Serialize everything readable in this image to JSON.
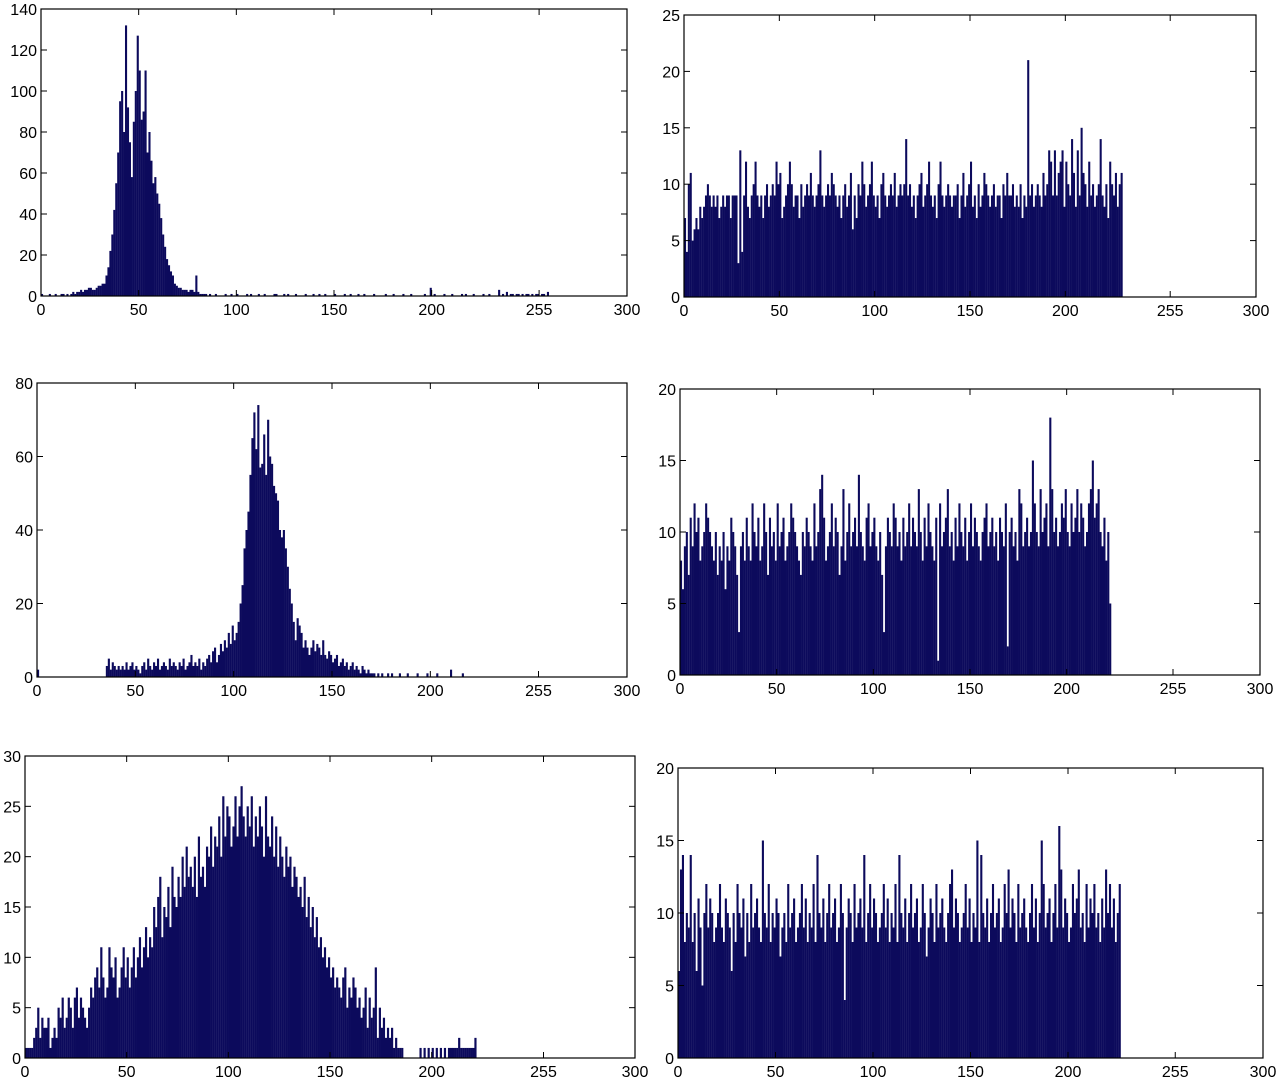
{
  "style": {
    "bar_color": "#0c0a5c",
    "axis_color": "#000000",
    "background": "#ffffff"
  },
  "chart_data": [
    {
      "type": "bar",
      "xlim": [
        0,
        300
      ],
      "ylim": [
        0,
        140
      ],
      "xticks": [
        0,
        50,
        100,
        150,
        200,
        255,
        300
      ],
      "yticks": [
        0,
        20,
        40,
        60,
        80,
        100,
        120,
        140
      ],
      "x_start": 0,
      "values": [
        1,
        0,
        0,
        0,
        1,
        0,
        0,
        1,
        0,
        0,
        1,
        1,
        0,
        1,
        0,
        1,
        2,
        1,
        2,
        2,
        3,
        2,
        3,
        3,
        4,
        4,
        3,
        3,
        4,
        5,
        5,
        6,
        6,
        10,
        14,
        22,
        30,
        42,
        55,
        70,
        95,
        100,
        80,
        132,
        92,
        75,
        58,
        85,
        100,
        127,
        110,
        86,
        90,
        110,
        70,
        80,
        66,
        55,
        58,
        50,
        45,
        38,
        30,
        24,
        18,
        15,
        12,
        10,
        6,
        5,
        4,
        4,
        3,
        3,
        3,
        2,
        3,
        3,
        2,
        10,
        2,
        1,
        1,
        1,
        1,
        0,
        1,
        0,
        0,
        1,
        0,
        0,
        0,
        0,
        1,
        0,
        0,
        1,
        0,
        0,
        1,
        0,
        0,
        0,
        0,
        1,
        0,
        1,
        0,
        0,
        0,
        1,
        0,
        0,
        1,
        0,
        0,
        0,
        0,
        1,
        1,
        0,
        0,
        0,
        1,
        0,
        1,
        0,
        0,
        0,
        1,
        0,
        0,
        0,
        0,
        1,
        0,
        0,
        0,
        1,
        0,
        0,
        1,
        0,
        0,
        1,
        0,
        0,
        0,
        0,
        1,
        0,
        0,
        0,
        0,
        1,
        0,
        0,
        1,
        0,
        0,
        0,
        1,
        0,
        0,
        1,
        0,
        0,
        0,
        0,
        1,
        0,
        0,
        0,
        0,
        0,
        1,
        0,
        0,
        0,
        1,
        0,
        0,
        0,
        0,
        1,
        0,
        0,
        0,
        1,
        0,
        0,
        0,
        0,
        0,
        0,
        1,
        0,
        0,
        4,
        0,
        1,
        0,
        0,
        0,
        0,
        1,
        0,
        0,
        0,
        1,
        0,
        0,
        0,
        0,
        1,
        0,
        1,
        0,
        0,
        0,
        1,
        0,
        0,
        0,
        0,
        1,
        0,
        0,
        1,
        0,
        0,
        0,
        0,
        3,
        0,
        1,
        0,
        2,
        0,
        1,
        1,
        0,
        1,
        1,
        0,
        1,
        0,
        1,
        1,
        0,
        1,
        0,
        1,
        1,
        0,
        1,
        1,
        0,
        2
      ]
    },
    {
      "type": "bar",
      "xlim": [
        0,
        300
      ],
      "ylim": [
        0,
        25
      ],
      "xticks": [
        0,
        50,
        100,
        150,
        200,
        255,
        300
      ],
      "yticks": [
        0,
        5,
        10,
        15,
        20,
        25
      ],
      "x_start": 0,
      "values": [
        7,
        4,
        10,
        11,
        5,
        6,
        7,
        6,
        8,
        7,
        8,
        9,
        10,
        9,
        8,
        9,
        8,
        9,
        7,
        8,
        9,
        8,
        9,
        9,
        7,
        9,
        9,
        9,
        3,
        13,
        4,
        9,
        12,
        8,
        7,
        9,
        10,
        12,
        9,
        8,
        9,
        7,
        9,
        10,
        8,
        9,
        10,
        9,
        12,
        10,
        11,
        7,
        8,
        9,
        10,
        12,
        10,
        8,
        9,
        9,
        7,
        10,
        8,
        9,
        10,
        9,
        11,
        9,
        8,
        9,
        10,
        13,
        9,
        8,
        9,
        10,
        9,
        11,
        10,
        9,
        8,
        9,
        7,
        9,
        10,
        8,
        9,
        11,
        6,
        9,
        7,
        10,
        9,
        12,
        10,
        8,
        9,
        10,
        12,
        9,
        8,
        9,
        7,
        10,
        11,
        9,
        8,
        9,
        10,
        9,
        11,
        8,
        9,
        10,
        9,
        10,
        14,
        9,
        10,
        8,
        9,
        7,
        9,
        10,
        11,
        8,
        9,
        10,
        12,
        9,
        8,
        9,
        7,
        10,
        12,
        9,
        8,
        9,
        10,
        9,
        8,
        9,
        9,
        10,
        7,
        9,
        11,
        8,
        9,
        10,
        12,
        8,
        9,
        7,
        10,
        8,
        9,
        11,
        10,
        9,
        8,
        9,
        10,
        8,
        9,
        9,
        7,
        10,
        9,
        11,
        9,
        9,
        10,
        8,
        9,
        8,
        10,
        7,
        9,
        8,
        21,
        9,
        10,
        8,
        9,
        10,
        9,
        8,
        11,
        9,
        10,
        13,
        12,
        9,
        13,
        9,
        11,
        12,
        13,
        8,
        12,
        10,
        9,
        14,
        11,
        8,
        13,
        9,
        15,
        11,
        10,
        8,
        12,
        9,
        10,
        8,
        9,
        10,
        14,
        9,
        8,
        10,
        7,
        12,
        10,
        9,
        11,
        8,
        10,
        11
      ]
    },
    {
      "type": "bar",
      "xlim": [
        0,
        300
      ],
      "ylim": [
        0,
        80
      ],
      "xticks": [
        0,
        50,
        100,
        150,
        200,
        255,
        300
      ],
      "yticks": [
        0,
        20,
        40,
        60,
        80
      ],
      "x_start": 0,
      "values": [
        2,
        0,
        0,
        0,
        0,
        0,
        0,
        0,
        0,
        0,
        0,
        0,
        0,
        0,
        0,
        0,
        0,
        0,
        0,
        0,
        0,
        0,
        0,
        0,
        0,
        0,
        0,
        0,
        0,
        0,
        0,
        0,
        0,
        0,
        0,
        3,
        5,
        2,
        4,
        3,
        2,
        3,
        2,
        3,
        2,
        4,
        2,
        3,
        4,
        2,
        3,
        2,
        1,
        3,
        4,
        2,
        5,
        3,
        2,
        4,
        3,
        5,
        2,
        3,
        4,
        3,
        2,
        5,
        3,
        4,
        3,
        2,
        4,
        3,
        5,
        2,
        3,
        4,
        6,
        3,
        4,
        3,
        5,
        2,
        4,
        3,
        5,
        6,
        4,
        7,
        8,
        4,
        6,
        9,
        7,
        10,
        8,
        12,
        9,
        14,
        10,
        12,
        15,
        20,
        25,
        35,
        40,
        45,
        55,
        65,
        72,
        62,
        74,
        57,
        58,
        66,
        55,
        70,
        60,
        58,
        52,
        50,
        48,
        40,
        38,
        40,
        35,
        30,
        24,
        20,
        15,
        10,
        16,
        14,
        12,
        8,
        10,
        8,
        6,
        8,
        10,
        7,
        9,
        8,
        6,
        10,
        6,
        5,
        7,
        6,
        4,
        5,
        6,
        3,
        4,
        5,
        3,
        4,
        2,
        3,
        4,
        2,
        3,
        2,
        1,
        3,
        2,
        1,
        2,
        1,
        1,
        1,
        0,
        1,
        0,
        1,
        0,
        0,
        1,
        0,
        1,
        0,
        0,
        0,
        1,
        0,
        0,
        0,
        1,
        0,
        0,
        0,
        0,
        1,
        0,
        0,
        0,
        0,
        1,
        0,
        0,
        0,
        0,
        1,
        0,
        0,
        0,
        0,
        0,
        0,
        2,
        0,
        0,
        0,
        0,
        0,
        1,
        0
      ]
    },
    {
      "type": "bar",
      "xlim": [
        0,
        300
      ],
      "ylim": [
        0,
        20
      ],
      "xticks": [
        0,
        50,
        100,
        150,
        200,
        255,
        300
      ],
      "yticks": [
        0,
        5,
        10,
        15,
        20
      ],
      "x_start": 0,
      "values": [
        8,
        6,
        9,
        10,
        7,
        11,
        9,
        12,
        10,
        11,
        8,
        9,
        10,
        12,
        11,
        10,
        9,
        8,
        10,
        7,
        9,
        8,
        10,
        6,
        9,
        8,
        11,
        10,
        9,
        7,
        3,
        9,
        10,
        8,
        11,
        9,
        8,
        12,
        10,
        9,
        11,
        8,
        9,
        12,
        10,
        7,
        11,
        9,
        10,
        8,
        12,
        9,
        10,
        11,
        8,
        9,
        10,
        12,
        11,
        10,
        9,
        8,
        7,
        10,
        9,
        11,
        10,
        9,
        8,
        12,
        9,
        10,
        13,
        14,
        11,
        8,
        9,
        10,
        12,
        9,
        11,
        10,
        7,
        9,
        13,
        8,
        10,
        12,
        9,
        10,
        11,
        9,
        14,
        10,
        9,
        8,
        11,
        12,
        9,
        10,
        11,
        9,
        8,
        10,
        7,
        3,
        9,
        11,
        10,
        9,
        12,
        11,
        9,
        10,
        8,
        11,
        9,
        10,
        12,
        9,
        11,
        10,
        9,
        13,
        10,
        8,
        11,
        9,
        12,
        10,
        9,
        8,
        11,
        1,
        12,
        9,
        10,
        11,
        13,
        9,
        10,
        8,
        11,
        9,
        12,
        10,
        9,
        11,
        8,
        10,
        12,
        9,
        11,
        10,
        9,
        8,
        10,
        11,
        12,
        9,
        10,
        11,
        9,
        10,
        8,
        11,
        10,
        9,
        12,
        2,
        10,
        11,
        9,
        10,
        8,
        13,
        12,
        9,
        10,
        11,
        9,
        10,
        15,
        12,
        10,
        9,
        13,
        10,
        11,
        12,
        9,
        18,
        13,
        10,
        11,
        9,
        10,
        12,
        11,
        13,
        10,
        9,
        12,
        10,
        11,
        13,
        10,
        12,
        11,
        9,
        10,
        12,
        13,
        15,
        11,
        12,
        13,
        10,
        9,
        11,
        8,
        10,
        5
      ]
    },
    {
      "type": "bar",
      "xlim": [
        0,
        300
      ],
      "ylim": [
        0,
        30
      ],
      "xticks": [
        0,
        50,
        100,
        150,
        200,
        255,
        300
      ],
      "yticks": [
        0,
        5,
        10,
        15,
        20,
        25,
        30
      ],
      "x_start": 0,
      "values": [
        1,
        1,
        1,
        1,
        2,
        3,
        5,
        2,
        4,
        3,
        3,
        4,
        1,
        2,
        3,
        2,
        5,
        4,
        6,
        3,
        4,
        6,
        5,
        3,
        6,
        7,
        4,
        6,
        5,
        4,
        3,
        5,
        7,
        6,
        8,
        9,
        7,
        11,
        8,
        6,
        7,
        11,
        9,
        8,
        10,
        6,
        7,
        9,
        11,
        8,
        10,
        7,
        9,
        11,
        8,
        10,
        12,
        9,
        11,
        13,
        10,
        12,
        11,
        15,
        13,
        16,
        18,
        12,
        15,
        14,
        17,
        13,
        19,
        16,
        15,
        18,
        16,
        20,
        17,
        21,
        18,
        19,
        17,
        20,
        16,
        22,
        18,
        19,
        17,
        21,
        20,
        23,
        19,
        22,
        21,
        24,
        20,
        26,
        22,
        25,
        24,
        21,
        23,
        26,
        22,
        25,
        27,
        24,
        22,
        25,
        23,
        26,
        21,
        24,
        22,
        25,
        23,
        20,
        26,
        22,
        21,
        24,
        20,
        23,
        19,
        22,
        20,
        18,
        21,
        19,
        20,
        17,
        19,
        18,
        16,
        17,
        15,
        18,
        14,
        16,
        13,
        15,
        12,
        14,
        11,
        12,
        10,
        11,
        9,
        10,
        8,
        9,
        7,
        8,
        7,
        6,
        8,
        9,
        5,
        7,
        6,
        8,
        7,
        5,
        6,
        4,
        5,
        7,
        3,
        6,
        4,
        5,
        9,
        2,
        5,
        3,
        4,
        2,
        3,
        2,
        3,
        1,
        2,
        1,
        1,
        1,
        0,
        0,
        0,
        0,
        0,
        0,
        0,
        0,
        1,
        0,
        1,
        0,
        1,
        0,
        1,
        0,
        1,
        0,
        1,
        0,
        1,
        0,
        1,
        1,
        1,
        1,
        1,
        2,
        1,
        1,
        1,
        1,
        1,
        1,
        1,
        2
      ]
    },
    {
      "type": "bar",
      "xlim": [
        0,
        300
      ],
      "ylim": [
        0,
        20
      ],
      "xticks": [
        0,
        50,
        100,
        150,
        200,
        255,
        300
      ],
      "yticks": [
        0,
        5,
        10,
        15,
        20
      ],
      "x_start": 0,
      "values": [
        6,
        13,
        14,
        8,
        10,
        9,
        14,
        8,
        10,
        6,
        11,
        9,
        5,
        10,
        12,
        9,
        11,
        10,
        8,
        9,
        10,
        12,
        9,
        8,
        11,
        10,
        9,
        6,
        10,
        8,
        12,
        10,
        9,
        11,
        7,
        10,
        8,
        12,
        9,
        10,
        11,
        9,
        8,
        15,
        10,
        9,
        12,
        8,
        10,
        9,
        11,
        10,
        7,
        9,
        10,
        8,
        12,
        9,
        10,
        11,
        8,
        9,
        10,
        12,
        9,
        11,
        8,
        10,
        9,
        12,
        8,
        14,
        10,
        9,
        11,
        8,
        10,
        12,
        9,
        10,
        11,
        8,
        9,
        12,
        10,
        4,
        9,
        11,
        10,
        8,
        12,
        9,
        10,
        11,
        9,
        14,
        8,
        10,
        12,
        9,
        11,
        10,
        8,
        9,
        10,
        12,
        9,
        11,
        8,
        10,
        9,
        12,
        8,
        14,
        10,
        9,
        11,
        8,
        10,
        12,
        9,
        10,
        11,
        8,
        9,
        12,
        10,
        7,
        9,
        11,
        10,
        8,
        12,
        9,
        10,
        11,
        9,
        8,
        10,
        12,
        13,
        9,
        11,
        10,
        8,
        9,
        10,
        12,
        9,
        11,
        8,
        10,
        9,
        15,
        8,
        14,
        10,
        9,
        11,
        8,
        10,
        12,
        9,
        10,
        11,
        8,
        9,
        12,
        10,
        13,
        9,
        11,
        10,
        8,
        12,
        9,
        10,
        11,
        9,
        8,
        10,
        12,
        9,
        11,
        8,
        10,
        15,
        12,
        9,
        10,
        11,
        8,
        10,
        12,
        9,
        16,
        13,
        9,
        11,
        10,
        8,
        9,
        12,
        10,
        11,
        13,
        9,
        10,
        8,
        12,
        9,
        11,
        10,
        12,
        9,
        10,
        8,
        11,
        9,
        13,
        10,
        12,
        9,
        11,
        8,
        10,
        12
      ]
    }
  ]
}
